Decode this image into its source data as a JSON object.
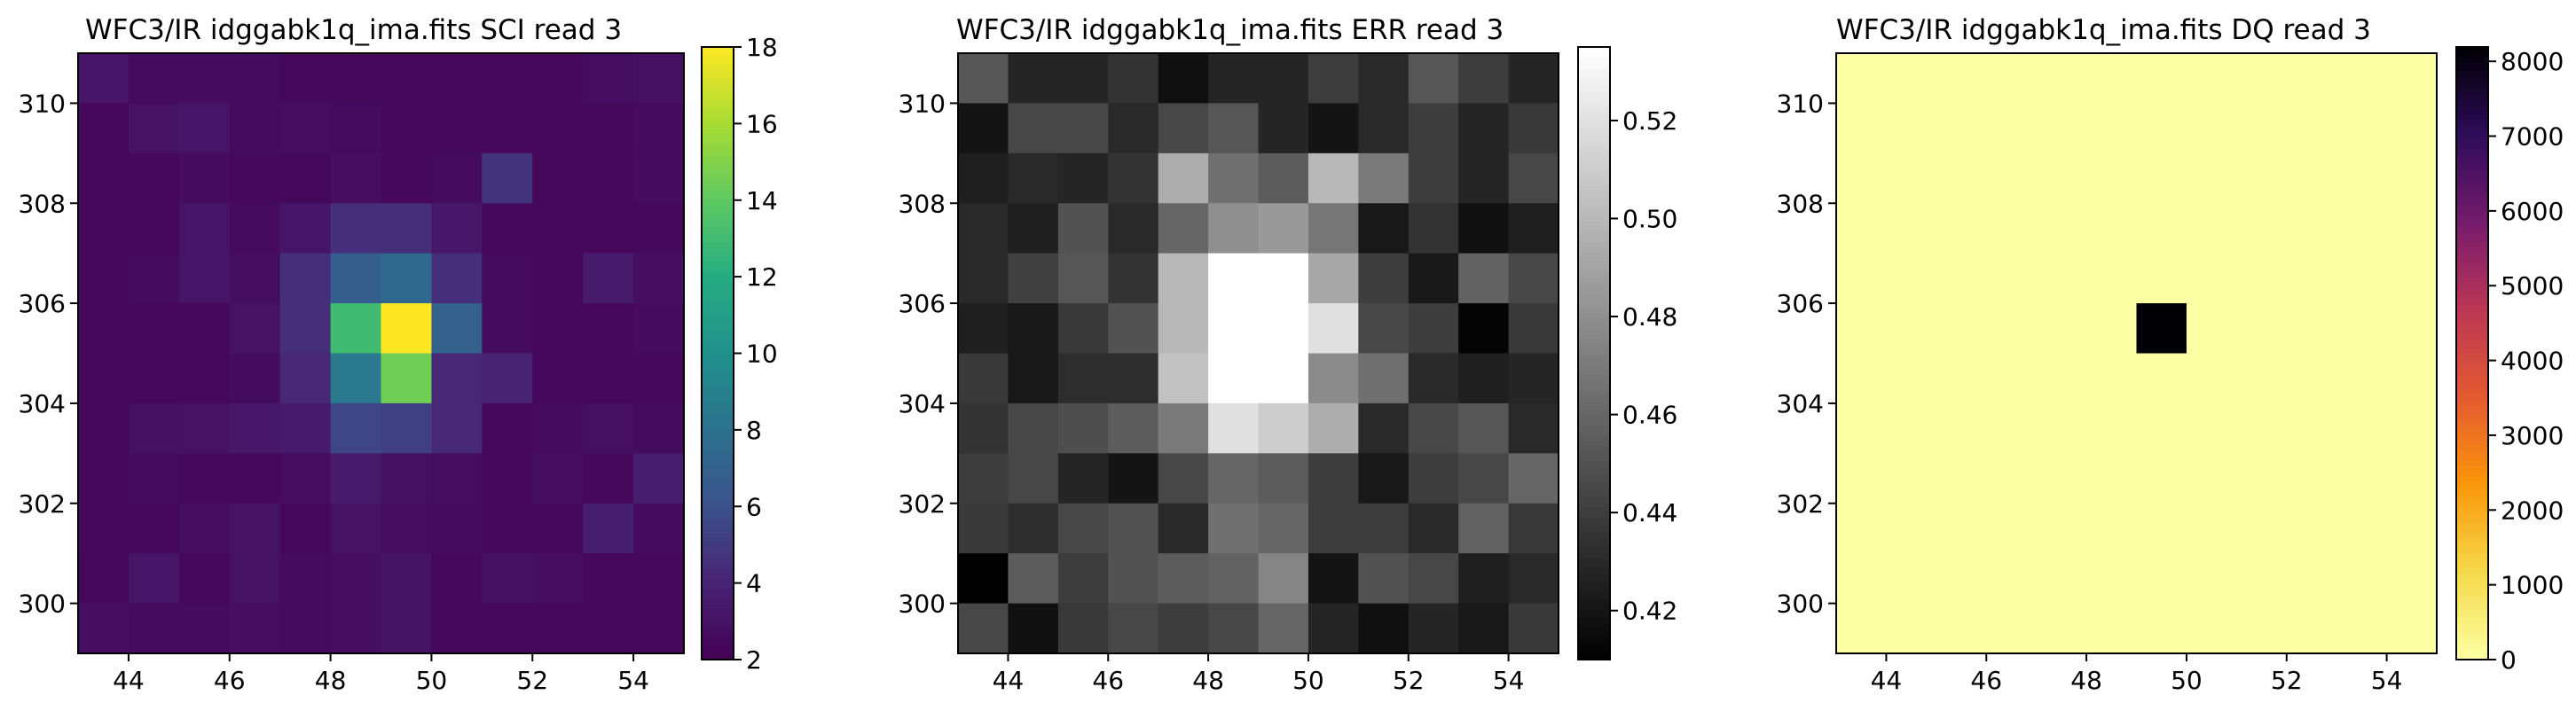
{
  "chart_data": [
    {
      "type": "heatmap",
      "title": "WFC3/IR idggabk1q_ima.fits  SCI read 3",
      "colormap": "viridis",
      "x_range": [
        43,
        55
      ],
      "y_range": [
        299,
        311
      ],
      "x_ticks": [
        "44",
        "46",
        "48",
        "50",
        "52",
        "54"
      ],
      "y_ticks": [
        "300",
        "302",
        "304",
        "306",
        "308",
        "310"
      ],
      "colorbar": {
        "min": 2,
        "max": 18,
        "ticks": [
          "2",
          "4",
          "6",
          "8",
          "10",
          "12",
          "14",
          "16",
          "18"
        ]
      },
      "rows_top_to_bottom": [
        [
          3.2,
          2.6,
          2.6,
          2.6,
          2.5,
          2.5,
          2.4,
          2.4,
          2.4,
          2.5,
          2.7,
          2.9
        ],
        [
          2.4,
          3.0,
          3.2,
          2.6,
          2.8,
          2.6,
          2.4,
          2.4,
          2.4,
          2.4,
          2.4,
          2.6
        ],
        [
          2.4,
          2.4,
          2.6,
          2.4,
          2.5,
          2.8,
          2.4,
          2.6,
          4.8,
          2.4,
          2.4,
          2.6
        ],
        [
          2.4,
          2.4,
          3.2,
          2.6,
          3.2,
          4.5,
          4.5,
          3.3,
          2.4,
          2.4,
          2.4,
          2.4
        ],
        [
          2.4,
          2.6,
          3.2,
          2.7,
          4.5,
          6.8,
          7.5,
          4.5,
          2.6,
          2.4,
          3.6,
          2.8
        ],
        [
          2.4,
          2.4,
          2.5,
          3.0,
          4.5,
          13.0,
          18.0,
          7.0,
          2.6,
          2.4,
          2.4,
          2.6
        ],
        [
          2.4,
          2.4,
          2.4,
          2.6,
          4.2,
          8.5,
          14.5,
          4.2,
          4.0,
          2.4,
          2.4,
          2.4
        ],
        [
          2.4,
          2.9,
          3.0,
          3.3,
          3.5,
          5.5,
          5.2,
          4.3,
          2.4,
          2.6,
          2.9,
          2.6
        ],
        [
          2.4,
          2.6,
          2.4,
          2.4,
          2.7,
          3.5,
          2.9,
          2.7,
          2.4,
          2.7,
          2.4,
          3.8
        ],
        [
          2.4,
          2.4,
          2.8,
          3.0,
          2.4,
          3.0,
          2.7,
          2.6,
          2.5,
          2.4,
          3.8,
          2.6
        ],
        [
          2.5,
          3.2,
          2.4,
          3.0,
          2.6,
          2.8,
          3.1,
          2.4,
          2.9,
          2.7,
          2.4,
          2.4
        ],
        [
          2.8,
          2.6,
          2.6,
          2.8,
          2.6,
          2.8,
          3.1,
          2.4,
          2.5,
          2.4,
          2.4,
          2.4
        ]
      ]
    },
    {
      "type": "heatmap",
      "title": "WFC3/IR idggabk1q_ima.fits  ERR read 3",
      "colormap": "gray",
      "x_range": [
        43,
        55
      ],
      "y_range": [
        299,
        311
      ],
      "x_ticks": [
        "44",
        "46",
        "48",
        "50",
        "52",
        "54"
      ],
      "y_ticks": [
        "300",
        "302",
        "304",
        "306",
        "308",
        "310"
      ],
      "colorbar": {
        "min": 0.41,
        "max": 0.535,
        "ticks": [
          "0.42",
          "0.44",
          "0.46",
          "0.48",
          "0.50",
          "0.52"
        ]
      },
      "rows_top_to_bottom": [
        [
          0.452,
          0.428,
          0.428,
          0.435,
          0.418,
          0.428,
          0.428,
          0.44,
          0.43,
          0.452,
          0.44,
          0.428
        ],
        [
          0.42,
          0.445,
          0.445,
          0.43,
          0.445,
          0.452,
          0.428,
          0.42,
          0.43,
          0.44,
          0.428,
          0.438
        ],
        [
          0.425,
          0.43,
          0.428,
          0.435,
          0.495,
          0.465,
          0.455,
          0.5,
          0.47,
          0.44,
          0.428,
          0.445
        ],
        [
          0.43,
          0.425,
          0.45,
          0.43,
          0.46,
          0.48,
          0.485,
          0.468,
          0.422,
          0.435,
          0.418,
          0.425
        ],
        [
          0.43,
          0.442,
          0.452,
          0.435,
          0.5,
          0.54,
          0.54,
          0.492,
          0.44,
          0.422,
          0.458,
          0.445
        ],
        [
          0.425,
          0.422,
          0.438,
          0.45,
          0.5,
          0.54,
          0.54,
          0.52,
          0.445,
          0.44,
          0.412,
          0.438
        ],
        [
          0.438,
          0.422,
          0.432,
          0.432,
          0.505,
          0.54,
          0.54,
          0.478,
          0.465,
          0.43,
          0.425,
          0.428
        ],
        [
          0.435,
          0.445,
          0.448,
          0.455,
          0.47,
          0.52,
          0.51,
          0.495,
          0.43,
          0.445,
          0.452,
          0.43
        ],
        [
          0.44,
          0.445,
          0.428,
          0.42,
          0.445,
          0.46,
          0.455,
          0.44,
          0.422,
          0.44,
          0.445,
          0.46
        ],
        [
          0.438,
          0.432,
          0.445,
          0.45,
          0.43,
          0.465,
          0.46,
          0.44,
          0.44,
          0.43,
          0.458,
          0.438
        ],
        [
          0.41,
          0.455,
          0.44,
          0.45,
          0.455,
          0.458,
          0.475,
          0.42,
          0.45,
          0.445,
          0.425,
          0.43
        ],
        [
          0.445,
          0.418,
          0.438,
          0.445,
          0.44,
          0.445,
          0.46,
          0.428,
          0.418,
          0.428,
          0.422,
          0.438
        ]
      ]
    },
    {
      "type": "heatmap",
      "title": "WFC3/IR idggabk1q_ima.fits  DQ read 3",
      "colormap": "inferno_r",
      "x_range": [
        43,
        55
      ],
      "y_range": [
        299,
        311
      ],
      "x_ticks": [
        "44",
        "46",
        "48",
        "50",
        "52",
        "54"
      ],
      "y_ticks": [
        "300",
        "302",
        "304",
        "306",
        "308",
        "310"
      ],
      "colorbar": {
        "min": 0,
        "max": 8192,
        "ticks": [
          "0",
          "1000",
          "2000",
          "3000",
          "4000",
          "5000",
          "6000",
          "7000",
          "8000"
        ]
      },
      "rows_top_to_bottom": [
        [
          0,
          0,
          0,
          0,
          0,
          0,
          0,
          0,
          0,
          0,
          0,
          0
        ],
        [
          0,
          0,
          0,
          0,
          0,
          0,
          0,
          0,
          0,
          0,
          0,
          0
        ],
        [
          0,
          0,
          0,
          0,
          0,
          0,
          0,
          0,
          0,
          0,
          0,
          0
        ],
        [
          0,
          0,
          0,
          0,
          0,
          0,
          0,
          0,
          0,
          0,
          0,
          0
        ],
        [
          0,
          0,
          0,
          0,
          0,
          0,
          0,
          0,
          0,
          0,
          0,
          0
        ],
        [
          0,
          0,
          0,
          0,
          0,
          0,
          8192,
          0,
          0,
          0,
          0,
          0
        ],
        [
          0,
          0,
          0,
          0,
          0,
          0,
          0,
          0,
          0,
          0,
          0,
          0
        ],
        [
          0,
          0,
          0,
          0,
          0,
          0,
          0,
          0,
          0,
          0,
          0,
          0
        ],
        [
          0,
          0,
          0,
          0,
          0,
          0,
          0,
          0,
          0,
          0,
          0,
          0
        ],
        [
          0,
          0,
          0,
          0,
          0,
          0,
          0,
          0,
          0,
          0,
          0,
          0
        ],
        [
          0,
          0,
          0,
          0,
          0,
          0,
          0,
          0,
          0,
          0,
          0,
          0
        ],
        [
          0,
          0,
          0,
          0,
          0,
          0,
          0,
          0,
          0,
          0,
          0,
          0
        ]
      ]
    }
  ]
}
